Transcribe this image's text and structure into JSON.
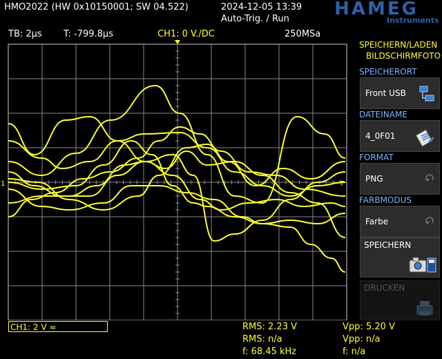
{
  "header": {
    "device": "HMO2022 (HW 0x10150001; SW 04.522)",
    "datetime": "2024-12-05 13:39",
    "trigger_state": "Auto-Trig. / Run",
    "logo_word": "HAMEG",
    "logo_sub": "Instruments"
  },
  "status": {
    "timebase": "TB: 2µs",
    "trigger_time": "T: -799.8µs",
    "channel": "CH1: 0 V./DC",
    "sample_rate": "250MSa"
  },
  "menu": {
    "heading_line1": "SPEICHERN/LADEN",
    "heading_line2": "BILDSCHIRMFOTO",
    "items": [
      {
        "label": "SPEICHERORT",
        "value": "Front USB",
        "icon": "usb-storage-icon"
      },
      {
        "label": "DATEINAME",
        "value": "4_0F01",
        "icon": "edit-filename-icon"
      },
      {
        "label": "FORMAT",
        "value": "PNG",
        "icon": "cycle-arrow-icon"
      },
      {
        "label": "FARBMODUS",
        "value": "Farbe",
        "icon": "cycle-arrow-icon"
      }
    ],
    "save_label": "SPEICHERN",
    "print_label": "DRUCKEN"
  },
  "footer": {
    "channel_info": "CH1: 2 V ≈",
    "rms1": "RMS: 2.23 V",
    "rms2": "RMS: n/a",
    "freq1": "f: 68.45 kHz",
    "vpp1": "Vpp: 5.20 V",
    "vpp2": "Vpp: n/a",
    "freq2": "f: n/a"
  },
  "colors": {
    "trace": "#ffff33",
    "grid": "#8c8c8c",
    "menu_label": "#7fb6ff",
    "brand": "#2f5fa8"
  }
}
